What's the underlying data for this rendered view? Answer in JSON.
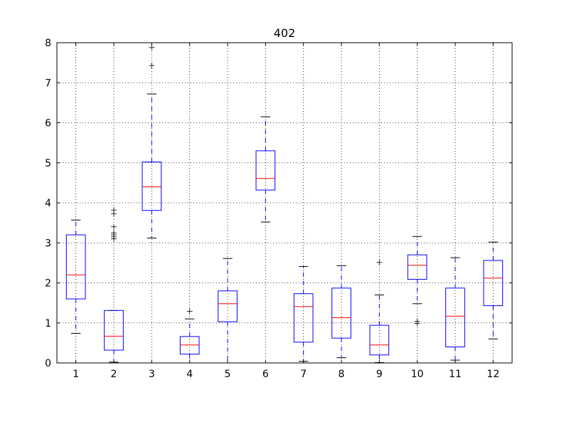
{
  "chart_data": {
    "type": "box",
    "title": "402",
    "xlabel": "",
    "ylabel": "",
    "ylim": [
      0,
      8
    ],
    "yticks": [
      0,
      1,
      2,
      3,
      4,
      5,
      6,
      7,
      8
    ],
    "grid": true,
    "colors": {
      "box": "#0000ff",
      "median": "#ff0000",
      "whisker": "#0000ff",
      "cap": "#000000",
      "flier": "#000000",
      "grid": "#000000"
    },
    "boxes": [
      {
        "label": "1",
        "whislo": 0.74,
        "q1": 1.6,
        "med": 2.2,
        "q3": 3.2,
        "whishi": 3.57,
        "fliers": []
      },
      {
        "label": "2",
        "whislo": 0.02,
        "q1": 0.32,
        "med": 0.67,
        "q3": 1.31,
        "whishi": 1.31,
        "fliers": [
          3.1,
          3.15,
          3.2,
          3.25,
          3.4,
          3.73,
          3.82
        ]
      },
      {
        "label": "3",
        "whislo": 3.12,
        "q1": 3.81,
        "med": 4.4,
        "q3": 5.02,
        "whishi": 6.72,
        "fliers": [
          7.43,
          7.88
        ]
      },
      {
        "label": "4",
        "whislo": 0.0,
        "q1": 0.22,
        "med": 0.45,
        "q3": 0.66,
        "whishi": 1.1,
        "fliers": [
          1.29
        ]
      },
      {
        "label": "5",
        "whislo": 0.0,
        "q1": 1.03,
        "med": 1.48,
        "q3": 1.8,
        "whishi": 2.61,
        "fliers": []
      },
      {
        "label": "6",
        "whislo": 3.52,
        "q1": 4.32,
        "med": 4.61,
        "q3": 5.3,
        "whishi": 6.15,
        "fliers": []
      },
      {
        "label": "7",
        "whislo": 0.04,
        "q1": 0.52,
        "med": 1.41,
        "q3": 1.73,
        "whishi": 2.41,
        "fliers": []
      },
      {
        "label": "8",
        "whislo": 0.13,
        "q1": 0.62,
        "med": 1.13,
        "q3": 1.87,
        "whishi": 2.43,
        "fliers": []
      },
      {
        "label": "9",
        "whislo": 0.01,
        "q1": 0.2,
        "med": 0.45,
        "q3": 0.94,
        "whishi": 1.7,
        "fliers": [
          2.51
        ]
      },
      {
        "label": "10",
        "whislo": 1.48,
        "q1": 2.09,
        "med": 2.44,
        "q3": 2.7,
        "whishi": 3.16,
        "fliers": [
          0.99,
          1.04
        ]
      },
      {
        "label": "11",
        "whislo": 0.07,
        "q1": 0.4,
        "med": 1.17,
        "q3": 1.87,
        "whishi": 2.63,
        "fliers": []
      },
      {
        "label": "12",
        "whislo": 0.6,
        "q1": 1.43,
        "med": 2.12,
        "q3": 2.56,
        "whishi": 3.02,
        "fliers": []
      }
    ]
  }
}
